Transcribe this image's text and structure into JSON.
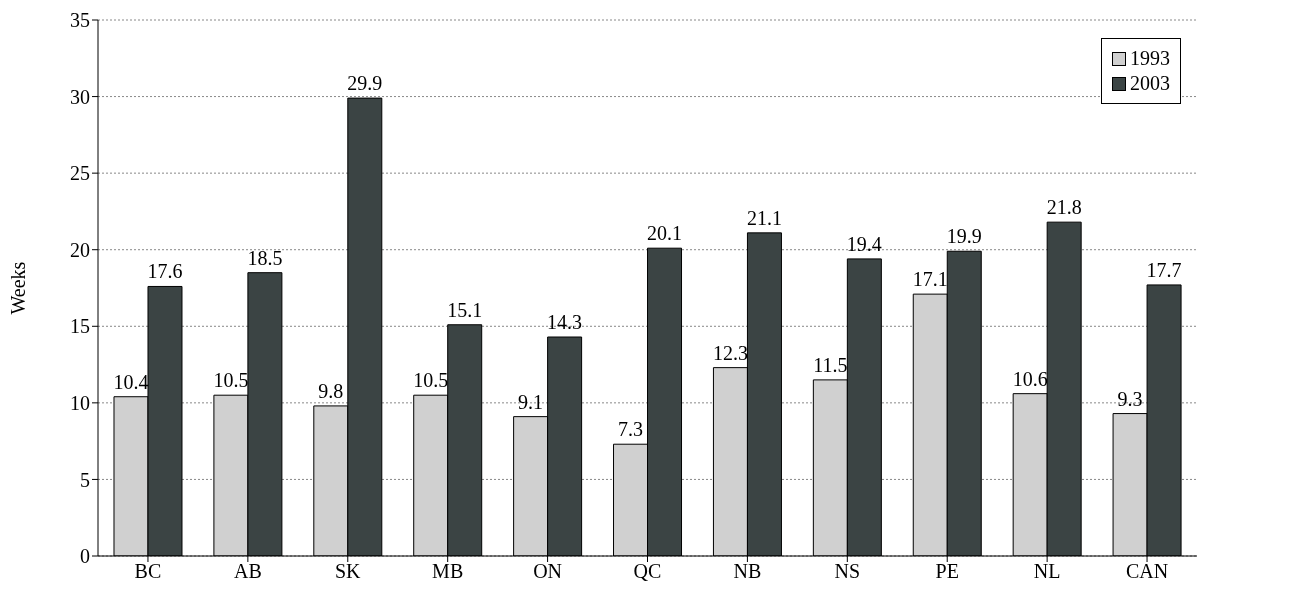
{
  "chart_data": {
    "type": "bar",
    "ylabel": "Weeks",
    "categories": [
      "BC",
      "AB",
      "SK",
      "MB",
      "ON",
      "QC",
      "NB",
      "NS",
      "PE",
      "NL",
      "CAN"
    ],
    "series": [
      {
        "name": "1993",
        "color": "#d0d0d0",
        "values": [
          10.4,
          10.5,
          9.8,
          10.5,
          9.1,
          7.3,
          12.3,
          11.5,
          17.1,
          10.6,
          9.3
        ]
      },
      {
        "name": "2003",
        "color": "#3b4444",
        "values": [
          17.6,
          18.5,
          29.9,
          15.1,
          14.3,
          20.1,
          21.1,
          19.4,
          19.9,
          21.8,
          17.7
        ]
      }
    ],
    "ylim": [
      0,
      35
    ],
    "yticks": [
      0,
      5,
      10,
      15,
      20,
      25,
      30,
      35
    ],
    "grid": "y",
    "legend": "top right",
    "data_labels": true
  }
}
